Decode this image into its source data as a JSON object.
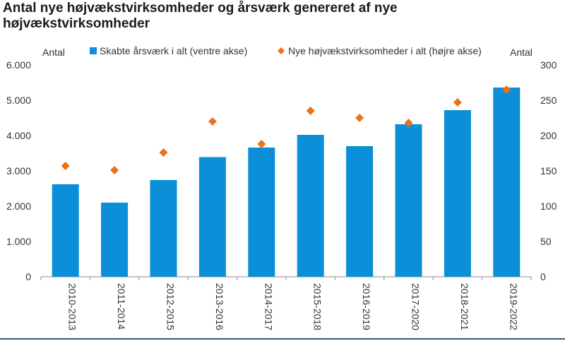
{
  "chart_data": {
    "type": "bar",
    "title": "Antal nye højvækstvirksomheder og årsværk genereret af nye højvækstvirksomheder",
    "categories": [
      "2010-2013",
      "2011-2014",
      "2012-2015",
      "2013-2016",
      "2014-2017",
      "2015-2018",
      "2016-2019",
      "2017-2020",
      "2018-2021",
      "2019-2022"
    ],
    "left_axis_label": "Antal",
    "right_axis_label": "Antal",
    "left_ylim": [
      0,
      6000
    ],
    "right_ylim": [
      0,
      300
    ],
    "left_ticks": [
      "0",
      "1.000",
      "2.000",
      "3.000",
      "4.000",
      "5.000",
      "6.000"
    ],
    "right_ticks": [
      "0",
      "50",
      "100",
      "150",
      "200",
      "250",
      "300"
    ],
    "legend_position": "top",
    "grid": false,
    "series": [
      {
        "name": "Skabte årsværk i alt (ventre akse)",
        "type": "bar",
        "axis": "left",
        "color": "#0a8fd8",
        "values": [
          2620,
          2100,
          2740,
          3390,
          3660,
          4020,
          3700,
          4320,
          4720,
          5360
        ]
      },
      {
        "name": "Nye højvækstvirksomheder i alt (højre akse)",
        "type": "scatter",
        "marker": "diamond",
        "axis": "right",
        "color": "#e8731c",
        "values": [
          157,
          151,
          176,
          220,
          188,
          235,
          225,
          218,
          247,
          265
        ]
      }
    ]
  }
}
